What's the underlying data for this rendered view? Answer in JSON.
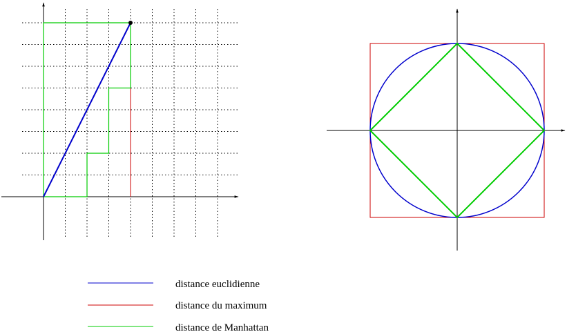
{
  "legend": [
    {
      "key": "euclidean",
      "label": "distance euclidienne",
      "color": "#0000cc"
    },
    {
      "key": "maximum",
      "label": "distance du maximum",
      "color": "#cc0000"
    },
    {
      "key": "manhattan",
      "label": "distance de Manhattan",
      "color": "#00cc00"
    }
  ],
  "left_panel": {
    "point": [
      4,
      8
    ],
    "manhattan_paths": [
      [
        [
          0,
          0
        ],
        [
          0,
          8
        ],
        [
          4,
          8
        ]
      ],
      [
        [
          0,
          0
        ],
        [
          2,
          0
        ],
        [
          2,
          2
        ],
        [
          3,
          2
        ],
        [
          3,
          5
        ],
        [
          4,
          5
        ],
        [
          4,
          8
        ]
      ]
    ],
    "grid_x_range": [
      1,
      8
    ],
    "grid_y_range": [
      1,
      8
    ]
  },
  "right_panel": {
    "radius": 1,
    "shapes": [
      "circle",
      "square",
      "diamond"
    ]
  },
  "colors": {
    "axis": "#000000",
    "grid": "#000000",
    "euclidean": "#0000cc",
    "maximum": "#cc0000",
    "manhattan": "#00cc00"
  }
}
